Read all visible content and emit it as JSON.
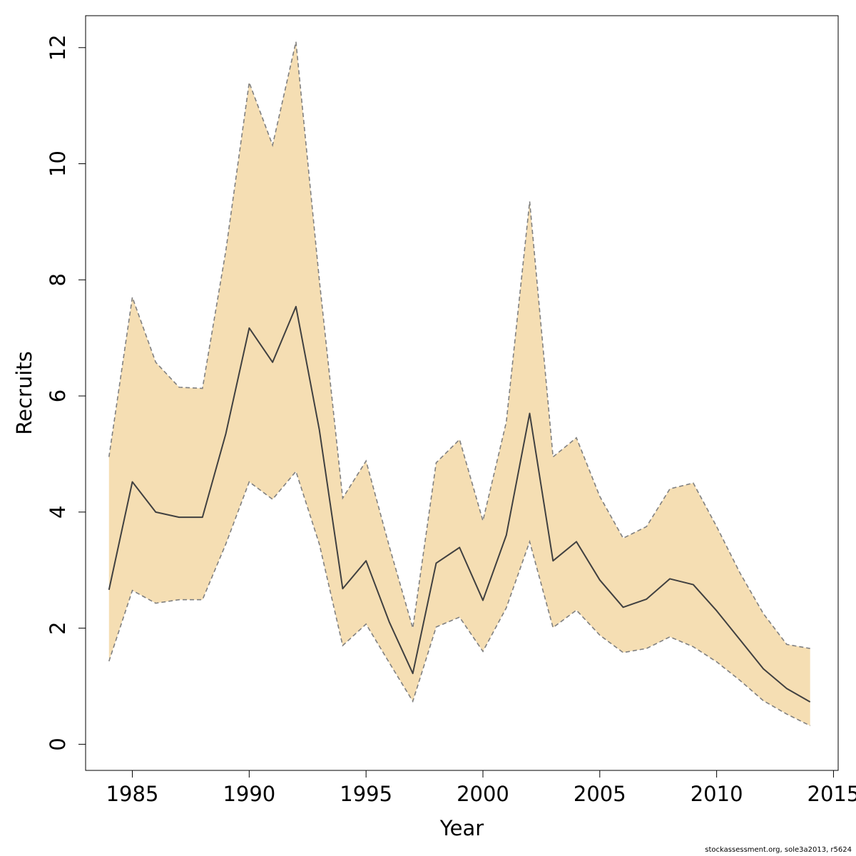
{
  "chart_data": {
    "type": "area",
    "title": "",
    "xlabel": "Year",
    "ylabel": "Recruits",
    "xlim": [
      1983,
      2015.2
    ],
    "ylim": [
      -0.45,
      12.55
    ],
    "x_ticks": [
      1985,
      1990,
      1995,
      2000,
      2005,
      2010,
      2015
    ],
    "y_ticks": [
      0,
      2,
      4,
      6,
      8,
      10,
      12
    ],
    "grid": false,
    "colors": {
      "band": "#f5deb3",
      "line": "#404040",
      "band_edge": "#808080"
    },
    "x": [
      1984,
      1985,
      1986,
      1987,
      1988,
      1989,
      1990,
      1991,
      1992,
      1993,
      1994,
      1995,
      1996,
      1997,
      1998,
      1999,
      2000,
      2001,
      2002,
      2003,
      2004,
      2005,
      2006,
      2007,
      2008,
      2009,
      2010,
      2011,
      2012,
      2013,
      2014
    ],
    "series": [
      {
        "role": "estimate",
        "values": [
          2.66,
          4.52,
          4.0,
          3.91,
          3.91,
          5.35,
          7.17,
          6.58,
          7.54,
          5.42,
          2.68,
          3.16,
          2.1,
          1.22,
          3.12,
          3.39,
          2.48,
          3.6,
          5.7,
          3.16,
          3.49,
          2.83,
          2.36,
          2.5,
          2.85,
          2.75,
          2.3,
          1.8,
          1.3,
          0.96,
          0.73
        ]
      },
      {
        "role": "upper",
        "values": [
          4.95,
          7.7,
          6.58,
          6.15,
          6.13,
          8.5,
          11.4,
          10.32,
          12.1,
          8.0,
          4.24,
          4.88,
          3.4,
          2.0,
          4.85,
          5.25,
          3.85,
          5.55,
          9.35,
          4.95,
          5.28,
          4.27,
          3.55,
          3.75,
          4.4,
          4.5,
          3.75,
          2.95,
          2.25,
          1.72,
          1.65
        ]
      },
      {
        "role": "lower",
        "values": [
          1.43,
          2.65,
          2.43,
          2.49,
          2.49,
          3.45,
          4.52,
          4.22,
          4.7,
          3.45,
          1.7,
          2.07,
          1.4,
          0.74,
          2.02,
          2.19,
          1.6,
          2.35,
          3.49,
          2.01,
          2.31,
          1.88,
          1.58,
          1.65,
          1.85,
          1.68,
          1.42,
          1.1,
          0.75,
          0.52,
          0.32
        ]
      }
    ]
  },
  "footer": {
    "credit": "stockassessment.org, sole3a2013, r5624"
  }
}
